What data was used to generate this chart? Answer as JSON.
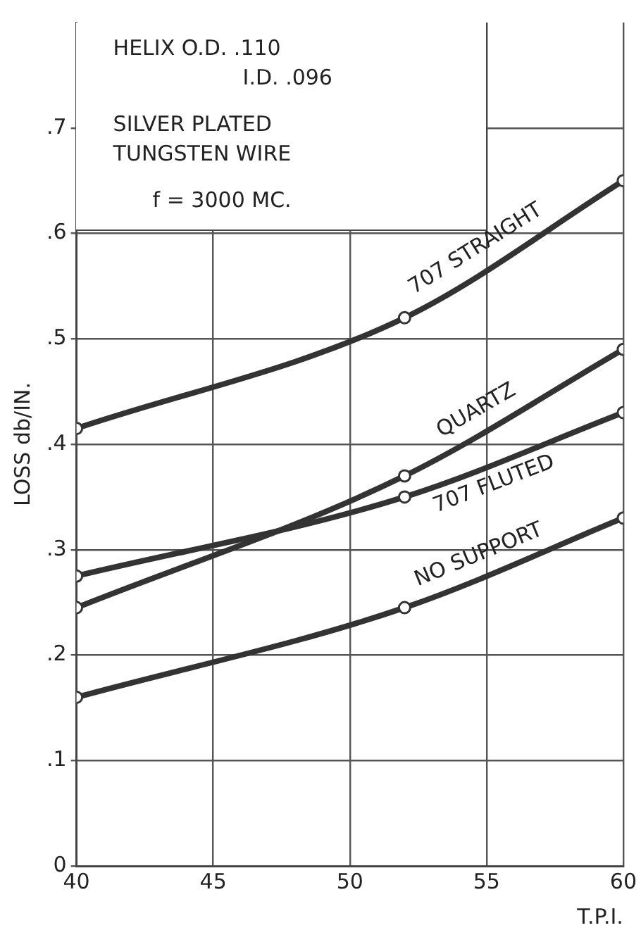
{
  "chart_data": {
    "type": "line",
    "xlabel": "T.P.I.",
    "ylabel": "LOSS db/IN.",
    "annotations": [
      "HELIX O.D. .110",
      "I.D. .096",
      "SILVER PLATED",
      "TUNGSTEN WIRE",
      "f = 3000 MC."
    ],
    "series": [
      {
        "name": "707 STRAIGHT",
        "color": "#333333",
        "x": [
          40,
          52,
          60
        ],
        "values": [
          0.415,
          0.52,
          0.65
        ]
      },
      {
        "name": "QUARTZ",
        "color": "#333333",
        "x": [
          40,
          52,
          60
        ],
        "values": [
          0.245,
          0.37,
          0.49
        ]
      },
      {
        "name": "707 FLUTED",
        "color": "#333333",
        "x": [
          40,
          52,
          60
        ],
        "values": [
          0.275,
          0.35,
          0.43
        ]
      },
      {
        "name": "NO SUPPORT",
        "color": "#333333",
        "x": [
          40,
          52,
          60
        ],
        "values": [
          0.16,
          0.245,
          0.33
        ]
      }
    ],
    "xlim": [
      40,
      60
    ],
    "xticks": [
      40,
      45,
      50,
      55,
      60
    ],
    "ylim": [
      0,
      0.8
    ],
    "yticks": [
      0,
      {
        "value": 0.1,
        "label": ".1"
      },
      {
        "value": 0.2,
        "label": ".2"
      },
      {
        "value": 0.3,
        "label": ".3"
      },
      {
        "value": 0.4,
        "label": ".4"
      },
      {
        "value": 0.5,
        "label": ".5"
      },
      {
        "value": 0.6,
        "label": ".6"
      },
      {
        "value": 0.7,
        "label": ".7"
      }
    ],
    "grid": true,
    "legend": false,
    "marker": "circle",
    "line_style": "solid"
  }
}
